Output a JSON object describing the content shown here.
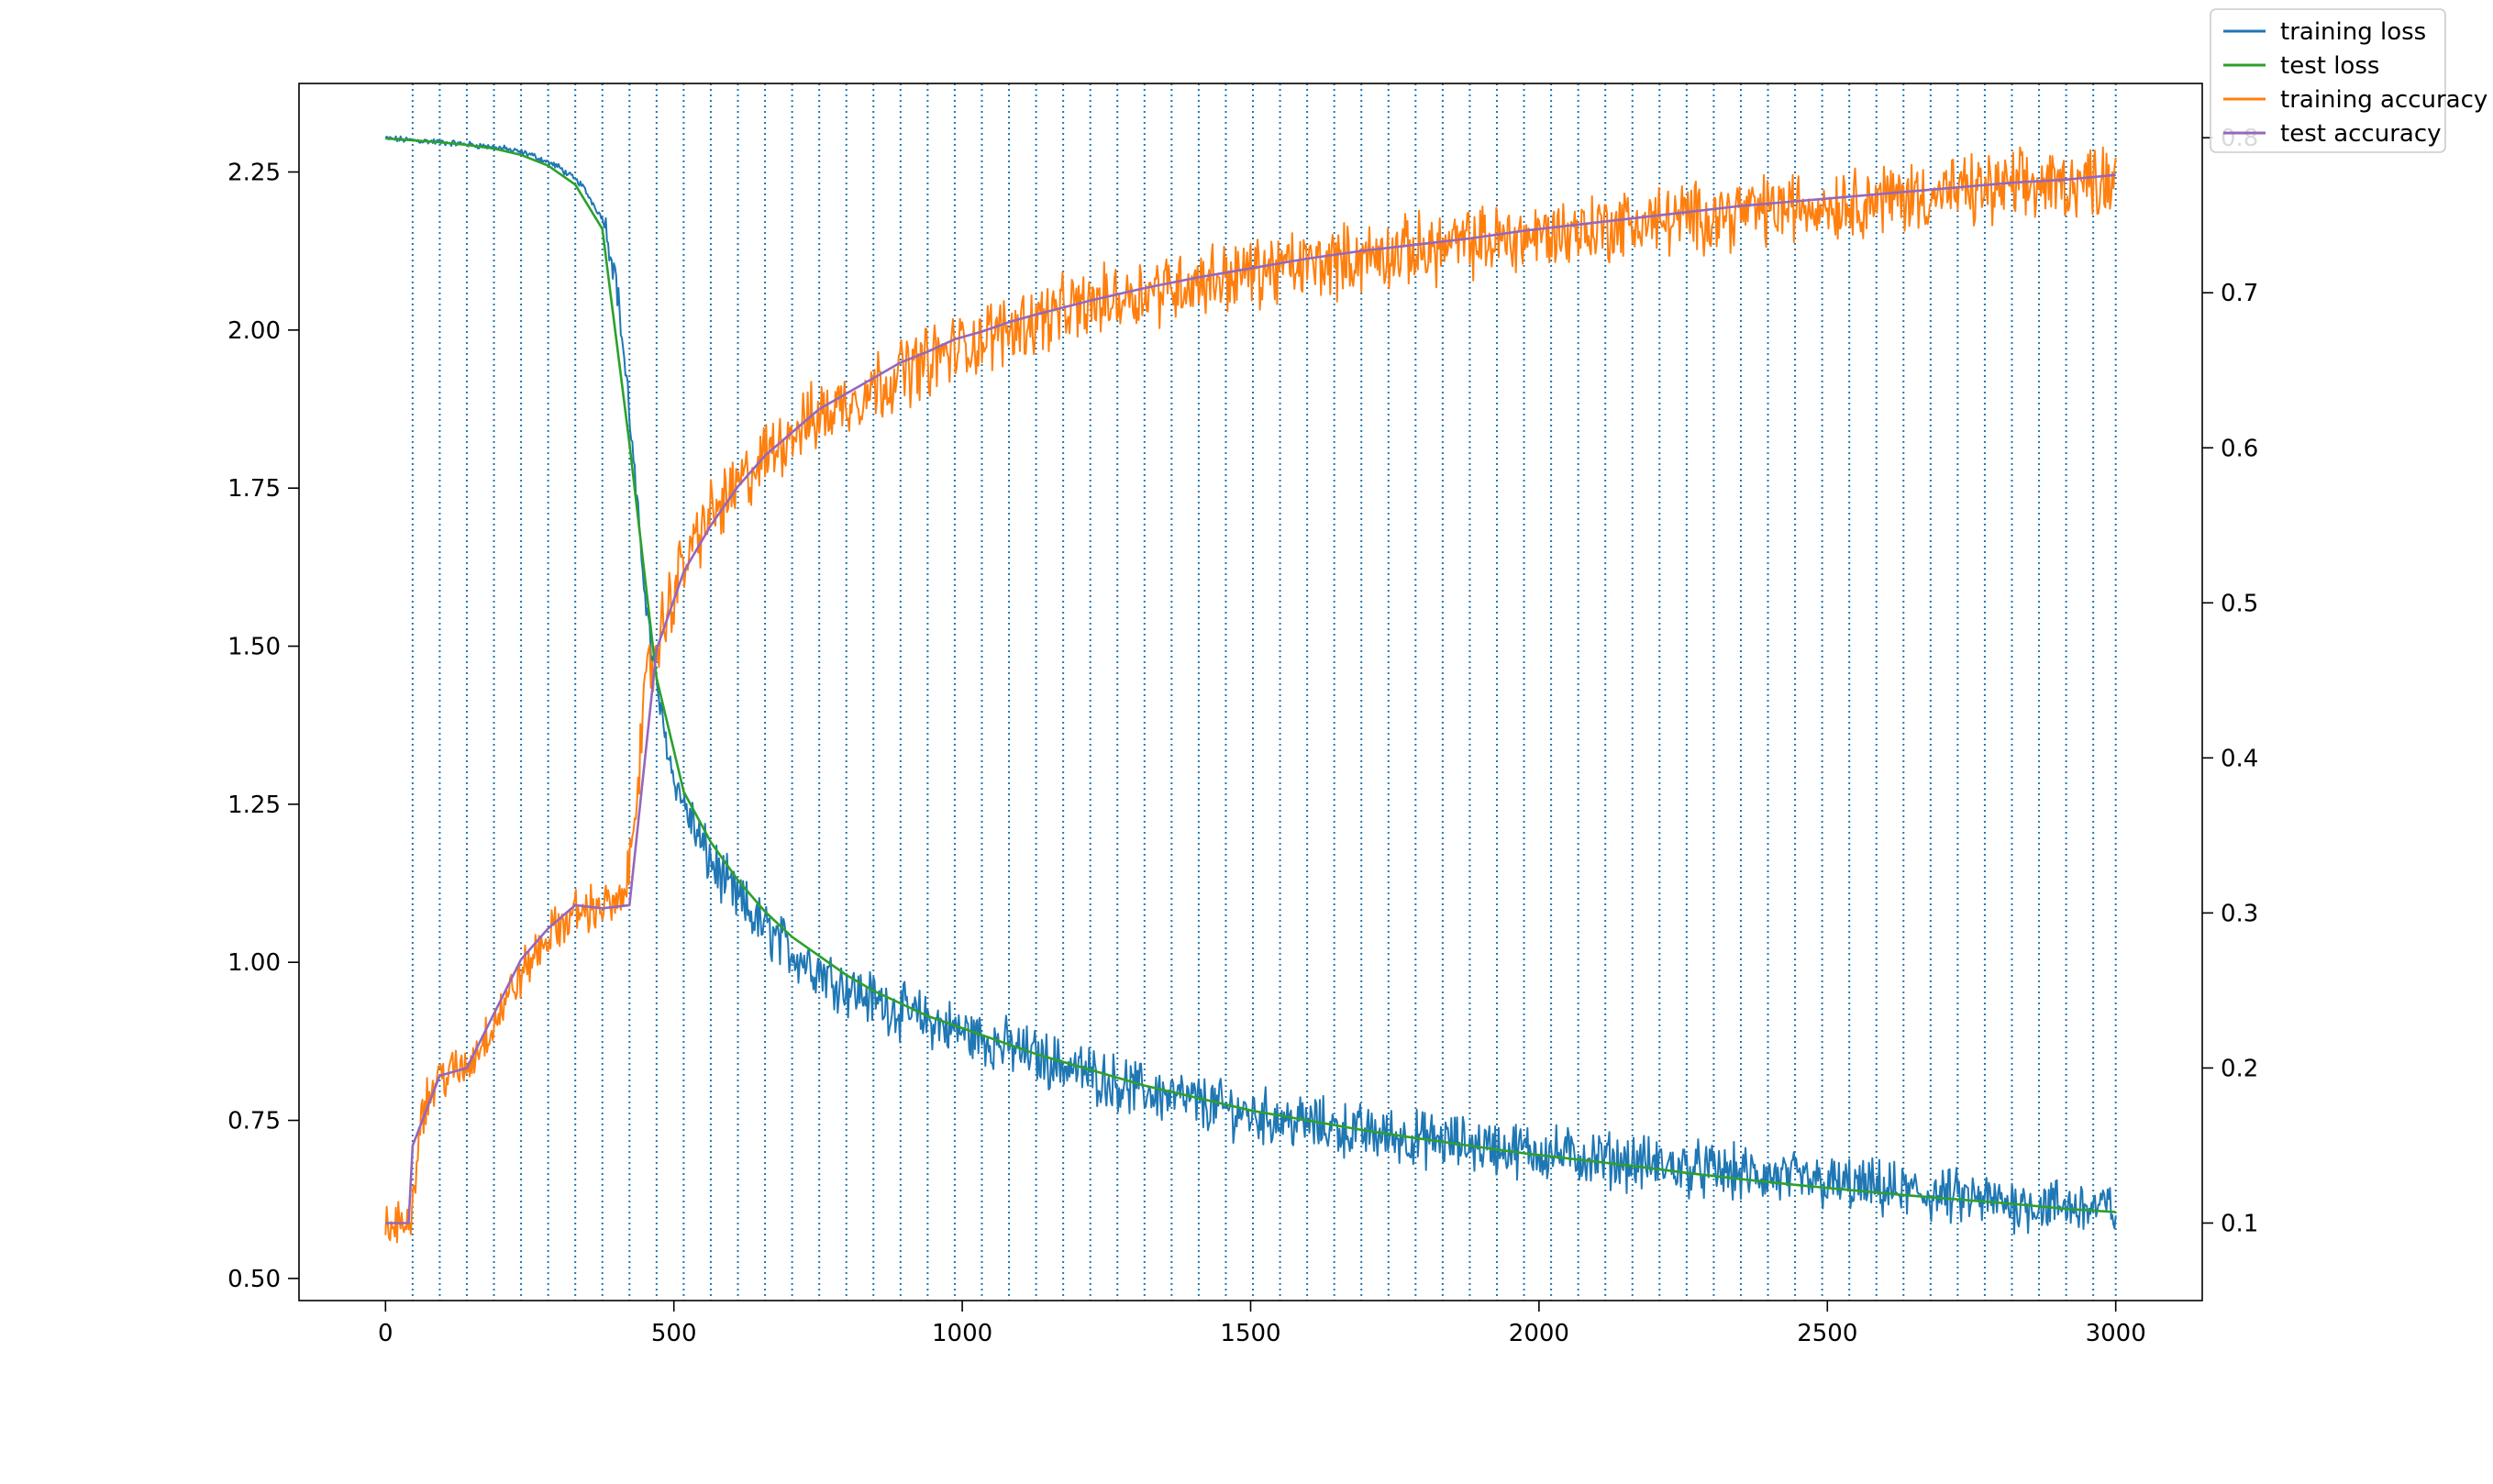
{
  "chart_data": {
    "type": "line",
    "title": "",
    "xlabel": "",
    "ylabel": "",
    "y2label": "",
    "xlim": [
      -150,
      3150
    ],
    "ylim_left": [
      0.465,
      2.39
    ],
    "ylim_right": [
      0.05,
      0.835
    ],
    "x_ticks": [
      0,
      500,
      1000,
      1500,
      2000,
      2500,
      3000
    ],
    "x_tick_labels": [
      "0",
      "500",
      "1000",
      "1500",
      "2000",
      "2500",
      "3000"
    ],
    "y_left_ticks": [
      0.5,
      0.75,
      1.0,
      1.25,
      1.5,
      1.75,
      2.0,
      2.25
    ],
    "y_left_tick_labels": [
      "0.50",
      "0.75",
      "1.00",
      "1.25",
      "1.50",
      "1.75",
      "2.00",
      "2.25"
    ],
    "y_right_ticks": [
      0.1,
      0.2,
      0.3,
      0.4,
      0.5,
      0.6,
      0.7,
      0.8
    ],
    "y_right_tick_labels": [
      "0.1",
      "0.2",
      "0.3",
      "0.4",
      "0.5",
      "0.6",
      "0.7",
      "0.8"
    ],
    "grid": false,
    "vertical_dotted_lines": {
      "color": "#1f77b4",
      "x": [
        47,
        94,
        141,
        188,
        235,
        282,
        329,
        376,
        423,
        470,
        517,
        564,
        611,
        658,
        705,
        752,
        799,
        846,
        893,
        940,
        987,
        1034,
        1081,
        1128,
        1175,
        1222,
        1269,
        1316,
        1363,
        1410,
        1457,
        1504,
        1551,
        1598,
        1645,
        1692,
        1739,
        1786,
        1833,
        1880,
        1927,
        1974,
        2021,
        2068,
        2115,
        2162,
        2209,
        2256,
        2303,
        2350,
        2397,
        2444,
        2491,
        2538,
        2585,
        2632,
        2679,
        2726,
        2773,
        2820,
        2867,
        2914,
        2961,
        3000
      ]
    },
    "legend_placement": "top-right",
    "legend": [
      "training loss",
      "test loss",
      "training accuracy",
      "test accuracy"
    ],
    "series": [
      {
        "name": "training loss",
        "axis": "left",
        "color": "#1f77b4",
        "noisy": true,
        "x": [
          0,
          50,
          100,
          150,
          200,
          250,
          300,
          340,
          380,
          400,
          420,
          440,
          460,
          480,
          500,
          550,
          600,
          650,
          700,
          750,
          800,
          900,
          1000,
          1100,
          1200,
          1300,
          1400,
          1500,
          1600,
          1700,
          1800,
          1900,
          2000,
          2100,
          2200,
          2300,
          2400,
          2500,
          2600,
          2700,
          2800,
          2900,
          3000
        ],
        "y": [
          2.303,
          2.3,
          2.297,
          2.293,
          2.288,
          2.278,
          2.258,
          2.23,
          2.17,
          2.08,
          1.9,
          1.68,
          1.5,
          1.38,
          1.29,
          1.18,
          1.11,
          1.06,
          1.02,
          0.99,
          0.96,
          0.92,
          0.89,
          0.86,
          0.83,
          0.8,
          0.78,
          0.76,
          0.745,
          0.73,
          0.72,
          0.71,
          0.7,
          0.69,
          0.68,
          0.67,
          0.66,
          0.65,
          0.64,
          0.63,
          0.62,
          0.615,
          0.61
        ]
      },
      {
        "name": "test loss",
        "axis": "left",
        "color": "#2ca02c",
        "noisy": false,
        "x": [
          0,
          47,
          94,
          141,
          188,
          235,
          282,
          329,
          376,
          423,
          470,
          517,
          564,
          611,
          658,
          705,
          752,
          799,
          846,
          893,
          940,
          987,
          1034,
          1128,
          1222,
          1316,
          1410,
          1504,
          1598,
          1692,
          1786,
          1880,
          1974,
          2068,
          2162,
          2256,
          2350,
          2444,
          2538,
          2632,
          2726,
          2820,
          2914,
          3000
        ],
        "y": [
          2.303,
          2.3,
          2.297,
          2.293,
          2.287,
          2.277,
          2.26,
          2.23,
          2.16,
          1.82,
          1.45,
          1.27,
          1.19,
          1.13,
          1.08,
          1.04,
          1.01,
          0.98,
          0.955,
          0.935,
          0.915,
          0.9,
          0.885,
          0.855,
          0.83,
          0.805,
          0.785,
          0.765,
          0.75,
          0.735,
          0.722,
          0.71,
          0.698,
          0.688,
          0.678,
          0.667,
          0.657,
          0.648,
          0.64,
          0.632,
          0.625,
          0.618,
          0.61,
          0.605
        ]
      },
      {
        "name": "training accuracy",
        "axis": "right",
        "color": "#ff7f0e",
        "noisy": true,
        "x": [
          0,
          30,
          47,
          60,
          94,
          141,
          188,
          235,
          282,
          329,
          376,
          410,
          423,
          440,
          455,
          470,
          500,
          550,
          600,
          650,
          700,
          750,
          800,
          900,
          1000,
          1100,
          1200,
          1300,
          1400,
          1500,
          1600,
          1700,
          1800,
          1900,
          2000,
          2100,
          2200,
          2300,
          2400,
          2500,
          2600,
          2700,
          2800,
          2900,
          3000
        ],
        "y": [
          0.095,
          0.1,
          0.11,
          0.17,
          0.195,
          0.2,
          0.23,
          0.26,
          0.285,
          0.3,
          0.305,
          0.305,
          0.33,
          0.4,
          0.45,
          0.47,
          0.51,
          0.55,
          0.57,
          0.59,
          0.61,
          0.62,
          0.63,
          0.65,
          0.665,
          0.68,
          0.69,
          0.7,
          0.707,
          0.713,
          0.718,
          0.723,
          0.728,
          0.733,
          0.737,
          0.742,
          0.746,
          0.75,
          0.754,
          0.757,
          0.761,
          0.764,
          0.767,
          0.77,
          0.775
        ]
      },
      {
        "name": "test accuracy",
        "axis": "right",
        "color": "#9467bd",
        "noisy": false,
        "x": [
          0,
          40,
          47,
          94,
          141,
          188,
          235,
          282,
          329,
          376,
          423,
          470,
          517,
          564,
          611,
          658,
          705,
          752,
          799,
          846,
          893,
          940,
          987,
          1034,
          1081,
          1128,
          1222,
          1316,
          1410,
          1504,
          1598,
          1692,
          1786,
          1880,
          1974,
          2068,
          2162,
          2256,
          2350,
          2444,
          2538,
          2632,
          2726,
          2820,
          2914,
          3000
        ],
        "y": [
          0.1,
          0.1,
          0.15,
          0.195,
          0.2,
          0.235,
          0.27,
          0.29,
          0.305,
          0.303,
          0.305,
          0.47,
          0.52,
          0.55,
          0.575,
          0.595,
          0.61,
          0.625,
          0.635,
          0.645,
          0.655,
          0.662,
          0.67,
          0.675,
          0.681,
          0.686,
          0.695,
          0.703,
          0.71,
          0.716,
          0.722,
          0.727,
          0.731,
          0.735,
          0.74,
          0.744,
          0.748,
          0.752,
          0.756,
          0.759,
          0.762,
          0.765,
          0.768,
          0.771,
          0.773,
          0.776
        ]
      }
    ]
  }
}
